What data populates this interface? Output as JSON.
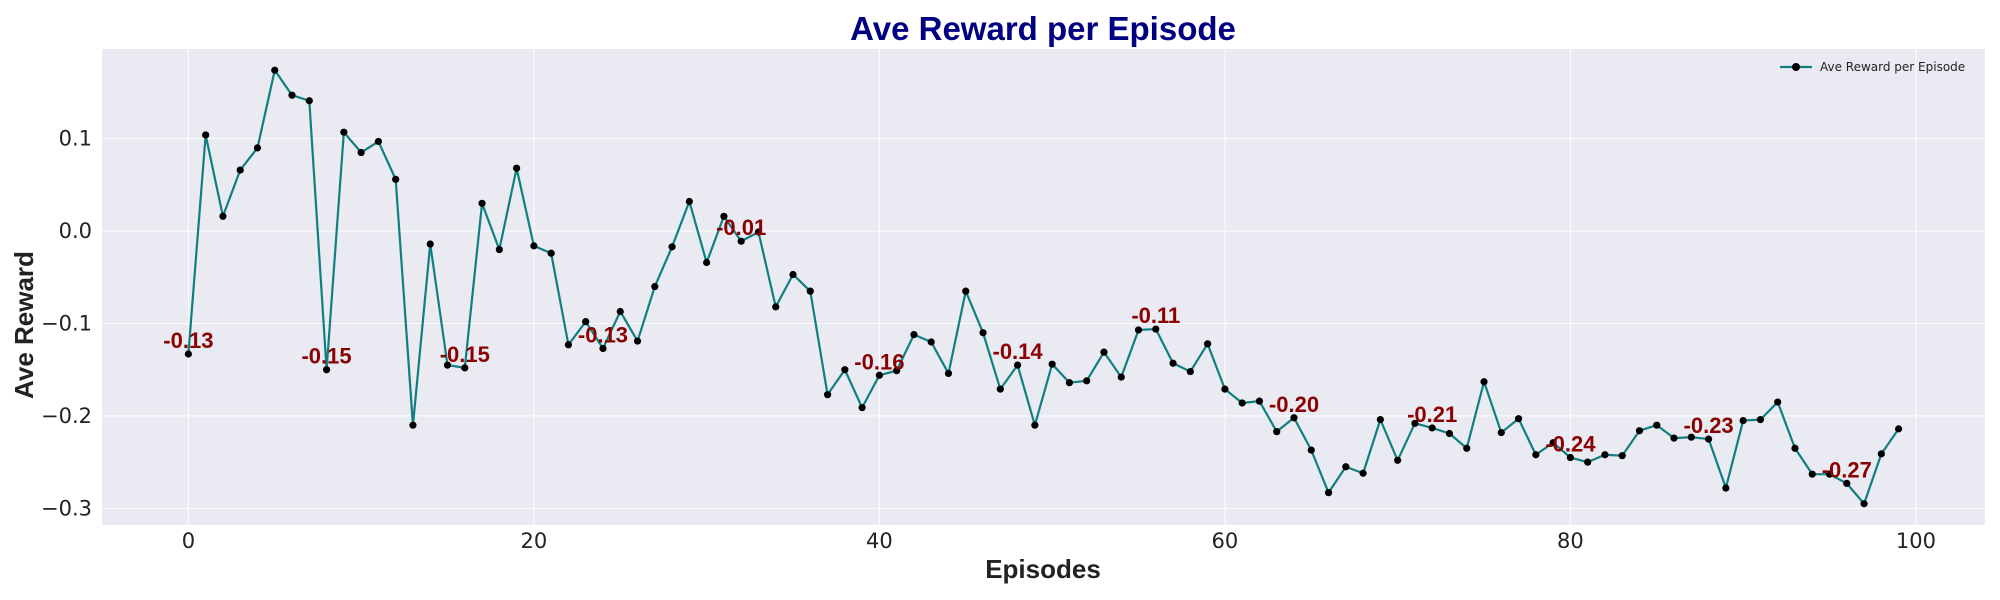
{
  "chart_data": {
    "type": "line",
    "title": "Ave Reward per Episode",
    "xlabel": "Episodes",
    "ylabel": "Ave Reward",
    "xlim": [
      -5,
      104
    ],
    "ylim": [
      -0.318,
      0.197
    ],
    "xticks": [
      0,
      20,
      40,
      60,
      80,
      100
    ],
    "yticks": [
      -0.3,
      -0.2,
      -0.1,
      0.0,
      0.1
    ],
    "ytick_labels": [
      "−0.3",
      "−0.2",
      "−0.1",
      "0.0",
      "0.1"
    ],
    "grid": true,
    "legend_position": "top-right",
    "colors": {
      "line": "#0f7f80",
      "marker": "#000000",
      "annotation": "#8b0000",
      "background": "#eaeaf2"
    },
    "series": [
      {
        "name": "Ave Reward per Episode",
        "x": [
          0,
          1,
          2,
          3,
          4,
          5,
          6,
          7,
          8,
          9,
          10,
          11,
          12,
          13,
          14,
          15,
          16,
          17,
          18,
          19,
          20,
          21,
          22,
          23,
          24,
          25,
          26,
          27,
          28,
          29,
          30,
          31,
          32,
          33,
          34,
          35,
          36,
          37,
          38,
          39,
          40,
          41,
          42,
          43,
          44,
          45,
          46,
          47,
          48,
          49,
          50,
          51,
          52,
          53,
          54,
          55,
          56,
          57,
          58,
          59,
          60,
          61,
          62,
          63,
          64,
          65,
          66,
          67,
          68,
          69,
          70,
          71,
          72,
          73,
          74,
          75,
          76,
          77,
          78,
          79,
          80,
          81,
          82,
          83,
          84,
          85,
          86,
          87,
          88,
          89,
          90,
          91,
          92,
          93,
          94,
          95,
          96,
          97,
          98,
          99
        ],
        "values": [
          -0.133,
          0.104,
          0.016,
          0.066,
          0.09,
          0.174,
          0.147,
          0.141,
          -0.15,
          0.107,
          0.085,
          0.097,
          0.056,
          -0.21,
          -0.014,
          -0.145,
          -0.148,
          0.03,
          -0.02,
          0.068,
          -0.016,
          -0.024,
          -0.123,
          -0.098,
          -0.127,
          -0.087,
          -0.119,
          -0.06,
          -0.017,
          0.032,
          -0.034,
          0.016,
          -0.011,
          -0.001,
          -0.082,
          -0.047,
          -0.065,
          -0.177,
          -0.15,
          -0.191,
          -0.156,
          -0.151,
          -0.112,
          -0.12,
          -0.154,
          -0.065,
          -0.11,
          -0.171,
          -0.145,
          -0.21,
          -0.144,
          -0.164,
          -0.162,
          -0.131,
          -0.158,
          -0.107,
          -0.106,
          -0.143,
          -0.152,
          -0.122,
          -0.171,
          -0.186,
          -0.184,
          -0.217,
          -0.202,
          -0.237,
          -0.283,
          -0.255,
          -0.262,
          -0.204,
          -0.248,
          -0.208,
          -0.213,
          -0.219,
          -0.235,
          -0.163,
          -0.218,
          -0.203,
          -0.242,
          -0.229,
          -0.245,
          -0.25,
          -0.242,
          -0.243,
          -0.216,
          -0.21,
          -0.224,
          -0.223,
          -0.225,
          -0.278,
          -0.205,
          -0.204,
          -0.185,
          -0.235,
          -0.263,
          -0.263,
          -0.273,
          -0.295,
          -0.241,
          -0.214
        ]
      }
    ],
    "annotations": [
      {
        "x": 0,
        "y": -0.133,
        "text": "-0.13"
      },
      {
        "x": 8,
        "y": -0.15,
        "text": "-0.15"
      },
      {
        "x": 16,
        "y": -0.148,
        "text": "-0.15"
      },
      {
        "x": 24,
        "y": -0.127,
        "text": "-0.13"
      },
      {
        "x": 32,
        "y": -0.011,
        "text": "-0.01"
      },
      {
        "x": 40,
        "y": -0.156,
        "text": "-0.16"
      },
      {
        "x": 48,
        "y": -0.145,
        "text": "-0.14"
      },
      {
        "x": 56,
        "y": -0.106,
        "text": "-0.11"
      },
      {
        "x": 64,
        "y": -0.202,
        "text": "-0.20"
      },
      {
        "x": 72,
        "y": -0.213,
        "text": "-0.21"
      },
      {
        "x": 80,
        "y": -0.245,
        "text": "-0.24"
      },
      {
        "x": 88,
        "y": -0.225,
        "text": "-0.23"
      },
      {
        "x": 96,
        "y": -0.273,
        "text": "-0.27"
      }
    ]
  }
}
